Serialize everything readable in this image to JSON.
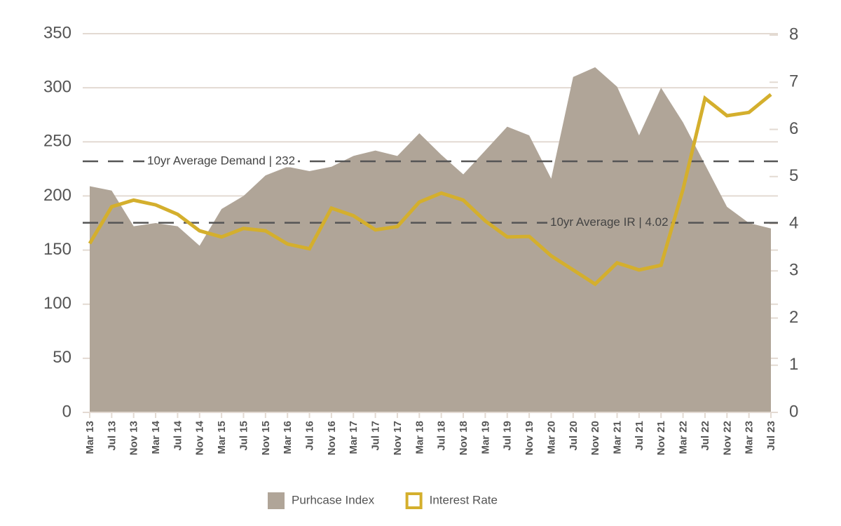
{
  "chart_data": {
    "type": "area_line",
    "categories": [
      "Mar 13",
      "Jul 13",
      "Nov 13",
      "Mar 14",
      "Jul 14",
      "Nov 14",
      "Mar 15",
      "Jul 15",
      "Nov 15",
      "Mar 16",
      "Jul 16",
      "Nov 16",
      "Mar 17",
      "Jul 17",
      "Nov 17",
      "Mar 18",
      "Jul 18",
      "Nov 18",
      "Mar 19",
      "Jul 19",
      "Nov 19",
      "Mar 20",
      "Jul 20",
      "Nov 20",
      "Mar 21",
      "Jul 21",
      "Nov 21",
      "Mar 22",
      "Jul 22",
      "Nov 22",
      "Mar 23",
      "Jul 23"
    ],
    "series": [
      {
        "name": "Purhcase Index",
        "color": "#b0a598",
        "kind": "area",
        "axis": "y",
        "values": [
          209,
          205,
          172,
          175,
          172,
          154,
          188,
          200,
          219,
          227,
          223,
          227,
          237,
          242,
          237,
          258,
          238,
          220,
          242,
          264,
          256,
          216,
          310,
          319,
          301,
          256,
          300,
          268,
          229,
          190,
          175,
          170
        ]
      },
      {
        "name": "Interest Rate",
        "color": "#d4af2d",
        "kind": "line",
        "axis": "y2",
        "values": [
          3.58,
          4.36,
          4.5,
          4.4,
          4.2,
          3.85,
          3.72,
          3.9,
          3.85,
          3.57,
          3.47,
          4.33,
          4.17,
          3.87,
          3.94,
          4.46,
          4.65,
          4.5,
          4.06,
          3.72,
          3.73,
          3.32,
          3.02,
          2.72,
          3.17,
          3.02,
          3.12,
          4.73,
          6.66,
          6.29,
          6.36,
          6.74
        ]
      }
    ],
    "ylim": [
      0,
      350
    ],
    "yticks": [
      0,
      50,
      100,
      150,
      200,
      250,
      300,
      350
    ],
    "y2lim": [
      0,
      8
    ],
    "y2ticks": [
      0,
      1,
      2,
      3,
      4,
      5,
      6,
      7,
      8
    ],
    "grid": true,
    "reference_lines": [
      {
        "value": 232,
        "axis": "y",
        "label": "10yr Average Demand | 232"
      },
      {
        "value": 4.02,
        "axis": "y2",
        "label": "10yr Average IR | 4.02"
      }
    ],
    "legend": "bottom"
  }
}
